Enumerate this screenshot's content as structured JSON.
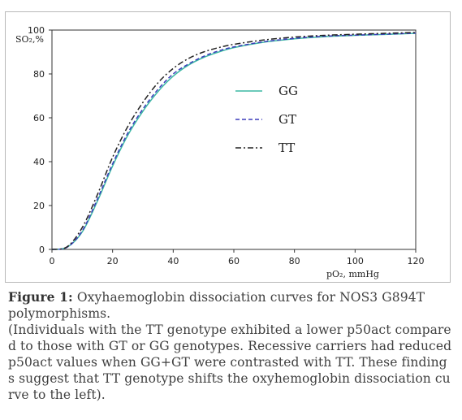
{
  "chart_data": {
    "type": "line",
    "xlabel": "pO₂, mmHg",
    "ylabel": "SO₂,%",
    "xlim": [
      0,
      120
    ],
    "ylim": [
      0,
      100
    ],
    "xticks": [
      0,
      20,
      40,
      60,
      80,
      100,
      120
    ],
    "yticks": [
      0,
      20,
      40,
      60,
      80,
      100
    ],
    "legend_position": "center-right",
    "grid": false,
    "x": [
      0,
      5,
      10,
      15,
      20,
      25,
      30,
      35,
      40,
      45,
      50,
      55,
      60,
      70,
      80,
      90,
      100,
      110,
      120
    ],
    "series": [
      {
        "name": "GG",
        "color": "#3cb9a4",
        "dash": "solid",
        "values": [
          0,
          1,
          8,
          22,
          38,
          52,
          63,
          72,
          79,
          84,
          87.5,
          90,
          92,
          94.5,
          96,
          97,
          97.6,
          98,
          98.5
        ]
      },
      {
        "name": "GT",
        "color": "#3d3dbb",
        "dash": "dashed",
        "values": [
          0,
          1,
          8.5,
          23,
          39,
          53,
          64,
          73,
          80,
          84.5,
          88,
          90.5,
          92.3,
          94.7,
          96.2,
          97.2,
          97.7,
          98.1,
          98.6
        ]
      },
      {
        "name": "TT",
        "color": "#222222",
        "dash": "dash-dot",
        "values": [
          0,
          1.2,
          10,
          25,
          42,
          56,
          67,
          76,
          82.5,
          87,
          90,
          92,
          93.5,
          95.5,
          96.8,
          97.6,
          98.1,
          98.5,
          98.9
        ]
      }
    ]
  },
  "caption": {
    "figure_label": "Figure 1:",
    "title_text": " Oxyhaemoglobin dissociation curves for NOS3 G894T polymorphisms.",
    "note": "(Individuals with the TT genotype exhibited a lower p50act compared to those with GT or GG genotypes. Recessive carriers had reduced p50act values when GG+GT were contrasted with TT. These findings suggest that TT genotype shifts the oxyhemoglobin dissociation curve to the left)."
  }
}
